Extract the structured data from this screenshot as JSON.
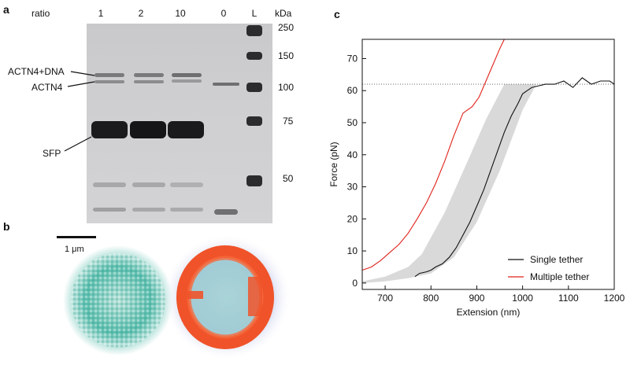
{
  "panel_a": {
    "letter": "a",
    "header": {
      "ratio_label": "ratio",
      "kda_label": "kDa"
    },
    "lanes": [
      "1",
      "2",
      "10",
      "0",
      "L"
    ],
    "ladder_kda": [
      "250",
      "150",
      "100",
      "75",
      "50"
    ],
    "band_labels": {
      "actn4_dna": "ACTN4+DNA",
      "actn4": "ACTN4",
      "sfp": "SFP"
    }
  },
  "panel_b": {
    "letter": "b",
    "scale_bar_label": "1 μm",
    "colors": {
      "left_particle": "#3fb3a0",
      "ring": "#f0532a",
      "halo": "#b9bfe0"
    }
  },
  "panel_c": {
    "letter": "c",
    "chart_data": {
      "type": "line",
      "xlabel": "Extension (nm)",
      "ylabel": "Force (pN)",
      "xlim": [
        650,
        1200
      ],
      "ylim": [
        -2,
        76
      ],
      "xticks": [
        700,
        800,
        900,
        1000,
        1100,
        1200
      ],
      "yticks": [
        0,
        10,
        20,
        30,
        40,
        50,
        60,
        70
      ],
      "legend_position": "bottom-right",
      "reference_line": {
        "y": 62,
        "style": "dotted"
      },
      "band": {
        "color": "#d9d9d9",
        "lower": {
          "x": [
            650,
            700,
            750,
            800,
            850,
            900,
            950,
            1000,
            1030
          ],
          "y": [
            0,
            0.5,
            1.5,
            3,
            8,
            19,
            35,
            54,
            62
          ]
        },
        "upper": {
          "x": [
            650,
            700,
            750,
            780,
            830,
            880,
            920,
            960
          ],
          "y": [
            0.5,
            2,
            5,
            9,
            22,
            38,
            51,
            62
          ]
        }
      },
      "series": [
        {
          "name": "Single tether",
          "color": "#111111",
          "x": [
            765,
            775,
            790,
            800,
            810,
            825,
            840,
            855,
            870,
            885,
            900,
            915,
            930,
            945,
            960,
            975,
            990,
            1000,
            1010,
            1020,
            1035,
            1050,
            1070,
            1090,
            1110,
            1130,
            1150,
            1170,
            1190,
            1200
          ],
          "y": [
            2,
            3,
            3.5,
            4,
            5,
            6,
            8,
            11,
            15,
            19,
            24,
            29,
            35,
            41,
            47,
            52,
            56,
            59,
            60,
            61,
            61.5,
            62,
            62,
            63,
            61,
            64,
            62,
            63,
            63,
            62
          ]
        },
        {
          "name": "Multiple tether",
          "color": "#e0221b",
          "x": [
            650,
            670,
            690,
            710,
            730,
            750,
            770,
            790,
            810,
            830,
            850,
            870,
            890,
            905,
            920,
            935,
            950,
            960
          ],
          "y": [
            4,
            5,
            7,
            9.5,
            12,
            15.5,
            20,
            25,
            31,
            38,
            46,
            53,
            55,
            58,
            63,
            68,
            73,
            76
          ]
        }
      ]
    }
  }
}
